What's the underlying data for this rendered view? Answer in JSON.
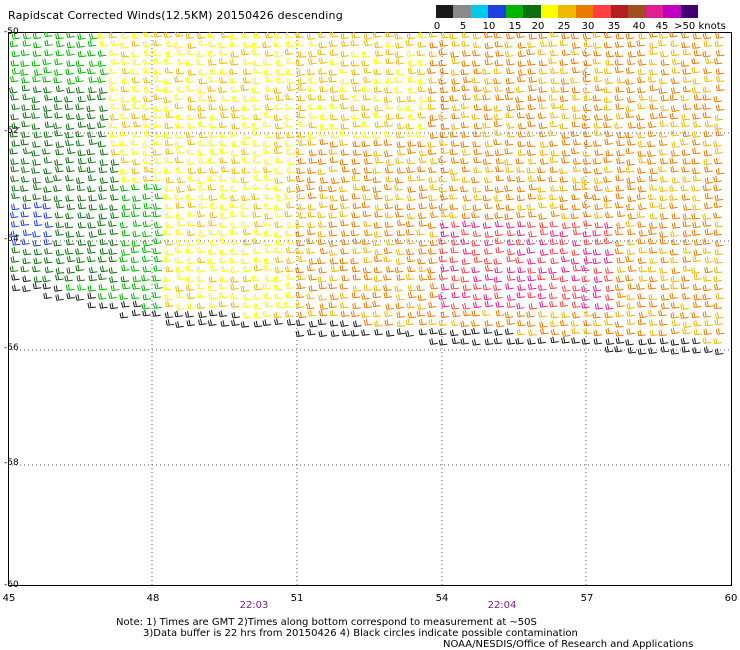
{
  "title": "Rapidscat Corrected Winds(12.5KM) 20150426 descending",
  "legend": {
    "labels": [
      "0",
      "5",
      "10",
      "15",
      "20",
      "25",
      "30",
      "35",
      "40",
      "45",
      ">50 knots"
    ],
    "colors": [
      "#1a1a1a",
      "#8a8a8a",
      "#00c8e6",
      "#1f3fe0",
      "#00b400",
      "#0f6e0f",
      "#ffff00",
      "#f0b800",
      "#e87a00",
      "#ff4040",
      "#b22020",
      "#a05020",
      "#e02090",
      "#c000c0",
      "#400070"
    ]
  },
  "map": {
    "latitudes": [
      "-50",
      "-52",
      "-54",
      "-56",
      "-58",
      "-60"
    ],
    "longitudes": [
      "45",
      "48",
      "51",
      "54",
      "57",
      "60"
    ],
    "times": [
      "22:03",
      "22:04"
    ]
  },
  "notes": {
    "line1": "Note: 1) Times are GMT 2)Times along bottom correspond to measurement at ~50S",
    "line2": "3)Data buffer is 22 hrs from 20150426 4) Black circles indicate possible contamination",
    "line3": "NOAA/NESDIS/Office of Research and Applications"
  }
}
